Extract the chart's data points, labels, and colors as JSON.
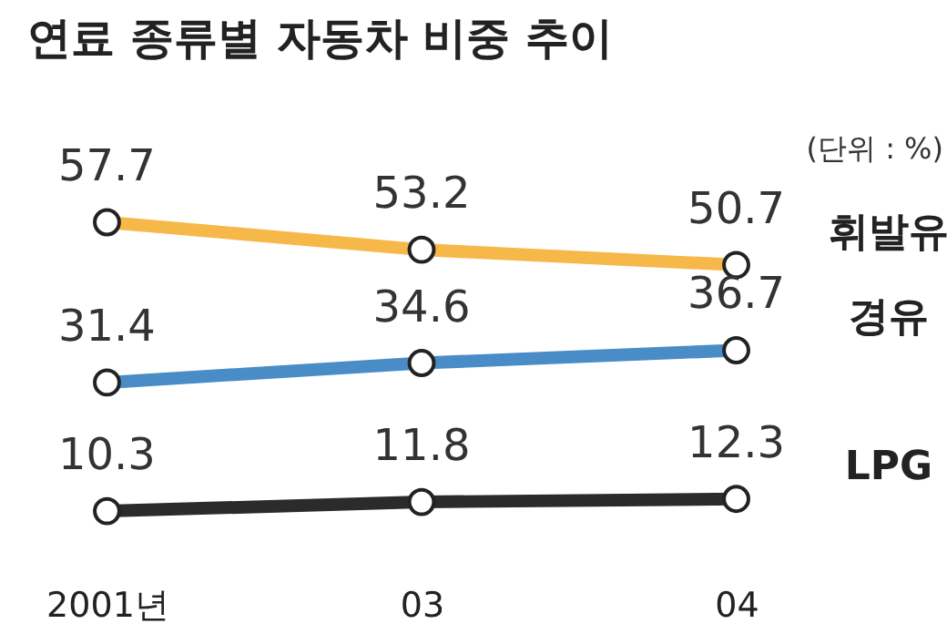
{
  "chart_data": {
    "type": "line",
    "title": "연료 종류별 자동차 비중 추이",
    "annotations": [
      "(단위 : %)"
    ],
    "categories": [
      "2001년",
      "03",
      "04"
    ],
    "series": [
      {
        "name": "휘발유",
        "color": "#f7b84a",
        "values": [
          57.7,
          53.2,
          50.7
        ]
      },
      {
        "name": "경유",
        "color": "#4a8cc6",
        "values": [
          31.4,
          34.6,
          36.7
        ]
      },
      {
        "name": "LPG",
        "color": "#2b2b2b",
        "values": [
          10.3,
          11.8,
          12.3
        ]
      }
    ],
    "data_labels": true,
    "marker": "circle",
    "legend": false,
    "grid": false,
    "tick_labels": "x"
  }
}
